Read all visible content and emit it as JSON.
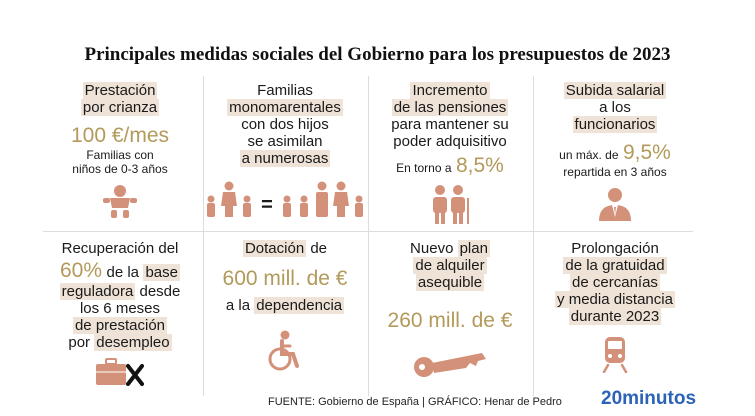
{
  "title": "Principales medidas sociales del Gobierno para los presupuestos de 2023",
  "colors": {
    "accent": "#d4917a",
    "gold": "#b39a5b",
    "highlight": "#eee3d6",
    "brand": "#2a63b8"
  },
  "cells": {
    "c1": {
      "l1": "Prestación",
      "l2": "por crianza",
      "value": "100 €/mes",
      "d1": "Familias con",
      "d2": "niños de 0-3 años"
    },
    "c2": {
      "l1": "Familias",
      "l2": "monomarentales",
      "l3": "con dos hijos",
      "l4": "se asimilan",
      "l5": "a numerosas",
      "eq": "="
    },
    "c3": {
      "l1": "Incremento",
      "l2": "de las pensiones",
      "l3": "para mantener su",
      "l4": "poder adquisitivo",
      "pre": "En torno a",
      "value": "8,5%"
    },
    "c4": {
      "l1": "Subida salarial",
      "l2": "a los",
      "l3": "funcionarios",
      "pre": "un máx. de",
      "value": "9,5%",
      "d1": "repartida en 3 años"
    },
    "c5": {
      "l1": "Recuperación del",
      "value": "60%",
      "l2a": "de la",
      "l2b": "base",
      "l3a": "reguladora",
      "l3b": "desde",
      "l4": "los 6 meses",
      "l5": "de prestación",
      "l6a": "por",
      "l6b": "desempleo"
    },
    "c6": {
      "l1a": "Dotación",
      "l1b": "de",
      "value": "600 mill. de €",
      "l2a": "a la",
      "l2b": "dependencia"
    },
    "c7": {
      "l1a": "Nuevo",
      "l1b": "plan",
      "l2": "de alquiler",
      "l3": "asequible",
      "value": "260 mill. de €"
    },
    "c8": {
      "l1": "Prolongación",
      "l2": "de la gratuidad",
      "l3": "de cercanías",
      "l4": "y media distancia",
      "l5": "durante 2023"
    }
  },
  "icons": [
    "baby-icon",
    "family-icon",
    "elderly-couple-icon",
    "official-icon",
    "briefcase-x-icon",
    "wheelchair-icon",
    "key-icon",
    "train-icon"
  ],
  "footer": "FUENTE: Gobierno de España  |  GRÁFICO: Henar de Pedro",
  "brand": "20minutos"
}
